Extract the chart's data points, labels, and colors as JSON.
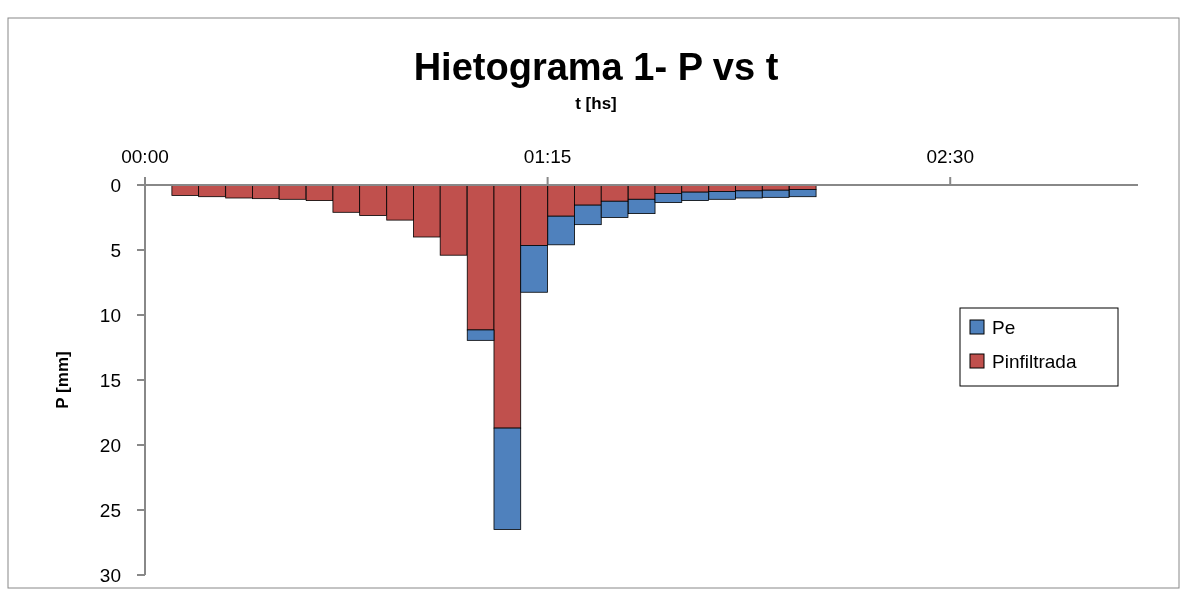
{
  "chart_data": {
    "type": "bar",
    "title": "Hietograma 1- P vs t",
    "xlabel": "t [hs]",
    "ylabel": "P [mm]",
    "stacked": true,
    "x": [
      0.125,
      0.208,
      0.292,
      0.375,
      0.458,
      0.542,
      0.625,
      0.708,
      0.792,
      0.875,
      0.958,
      1.042,
      1.125,
      1.208,
      1.292,
      1.375,
      1.458,
      1.542,
      1.625,
      1.708,
      1.792,
      1.875,
      1.958,
      2.042
    ],
    "series": [
      {
        "name": "Pinfiltrada",
        "color": "#c0504d",
        "values": [
          0.8,
          0.9,
          1.0,
          1.05,
          1.1,
          1.2,
          2.1,
          2.35,
          2.7,
          4.0,
          5.4,
          11.15,
          18.7,
          4.65,
          2.4,
          1.55,
          1.25,
          1.1,
          0.65,
          0.55,
          0.5,
          0.45,
          0.4,
          0.35
        ]
      },
      {
        "name": "Pe",
        "color": "#4f81bd",
        "values": [
          0,
          0,
          0,
          0,
          0,
          0,
          0,
          0,
          0,
          0,
          0,
          0.8,
          7.8,
          3.6,
          2.2,
          1.5,
          1.25,
          1.1,
          0.7,
          0.65,
          0.6,
          0.55,
          0.55,
          0.55
        ]
      }
    ],
    "xlim": [
      0,
      3.083
    ],
    "xticks": [
      {
        "value": 0,
        "label": "00:00"
      },
      {
        "value": 1.25,
        "label": "01:15"
      },
      {
        "value": 2.5,
        "label": "02:30"
      }
    ],
    "ylim": [
      30,
      0
    ],
    "yticks": [
      0,
      5,
      10,
      15,
      20,
      25,
      30
    ],
    "grid": false,
    "legend": "right"
  }
}
